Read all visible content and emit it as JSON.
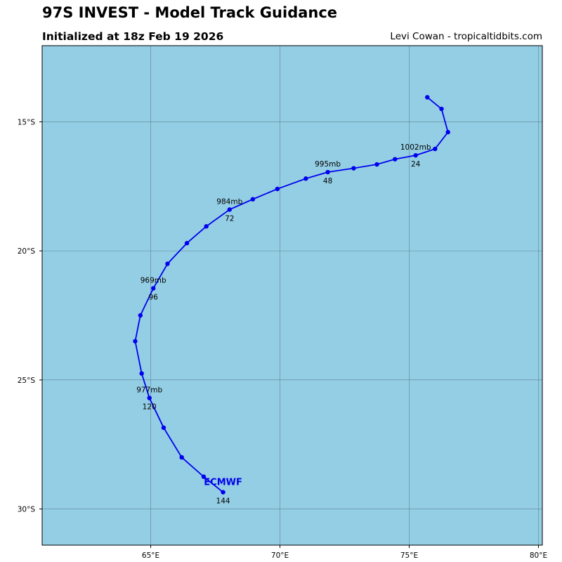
{
  "header": {
    "title": "97S INVEST - Model Track Guidance",
    "subtitle": "Initialized at 18z Feb 19 2026",
    "credit": "Levi Cowan - tropicaltidbits.com"
  },
  "colors": {
    "ocean": "#94cee4",
    "track": "#0000ee",
    "grid": "#4f6f80",
    "frame": "#000000"
  },
  "chart_data": {
    "type": "map-track",
    "lon_range": [
      60.8,
      80.15
    ],
    "lat_range": [
      -31.4,
      -12.05
    ],
    "lon_ticks": [
      {
        "value": 65,
        "label": "65°E"
      },
      {
        "value": 70,
        "label": "70°E"
      },
      {
        "value": 75,
        "label": "75°E"
      },
      {
        "value": 80,
        "label": "80°E"
      }
    ],
    "lat_ticks": [
      {
        "value": -15,
        "label": "15°S"
      },
      {
        "value": -20,
        "label": "20°S"
      },
      {
        "value": -25,
        "label": "25°S"
      },
      {
        "value": -30,
        "label": "30°S"
      }
    ],
    "series": [
      {
        "name": "ECMWF",
        "track": [
          [
            75.7,
            -14.05
          ],
          [
            76.25,
            -14.5
          ],
          [
            76.5,
            -15.4
          ],
          [
            76.0,
            -16.05
          ],
          [
            75.25,
            -16.3
          ],
          [
            74.45,
            -16.45
          ],
          [
            73.75,
            -16.65
          ],
          [
            72.85,
            -16.8
          ],
          [
            71.85,
            -16.95
          ],
          [
            71.0,
            -17.2
          ],
          [
            69.9,
            -17.6
          ],
          [
            68.95,
            -18.0
          ],
          [
            68.05,
            -18.4
          ],
          [
            67.15,
            -19.05
          ],
          [
            66.4,
            -19.7
          ],
          [
            65.65,
            -20.5
          ],
          [
            65.1,
            -21.45
          ],
          [
            64.6,
            -22.5
          ],
          [
            64.4,
            -23.5
          ],
          [
            64.65,
            -24.75
          ],
          [
            64.95,
            -25.7
          ],
          [
            65.5,
            -26.85
          ],
          [
            66.2,
            -28.0
          ],
          [
            67.05,
            -28.75
          ],
          [
            67.8,
            -29.35
          ]
        ],
        "annotations": [
          {
            "lon": 75.25,
            "lat": -16.3,
            "pressure": "1002mb",
            "hour": "24"
          },
          {
            "lon": 71.85,
            "lat": -16.95,
            "pressure": "995mb",
            "hour": "48"
          },
          {
            "lon": 68.05,
            "lat": -18.4,
            "pressure": "984mb",
            "hour": "72"
          },
          {
            "lon": 65.1,
            "lat": -21.45,
            "pressure": "969mb",
            "hour": "96"
          },
          {
            "lon": 64.95,
            "lat": -25.7,
            "pressure": "977mb",
            "hour": "120"
          },
          {
            "lon": 67.8,
            "lat": -29.35,
            "pressure": "",
            "hour": "144"
          }
        ]
      }
    ]
  }
}
